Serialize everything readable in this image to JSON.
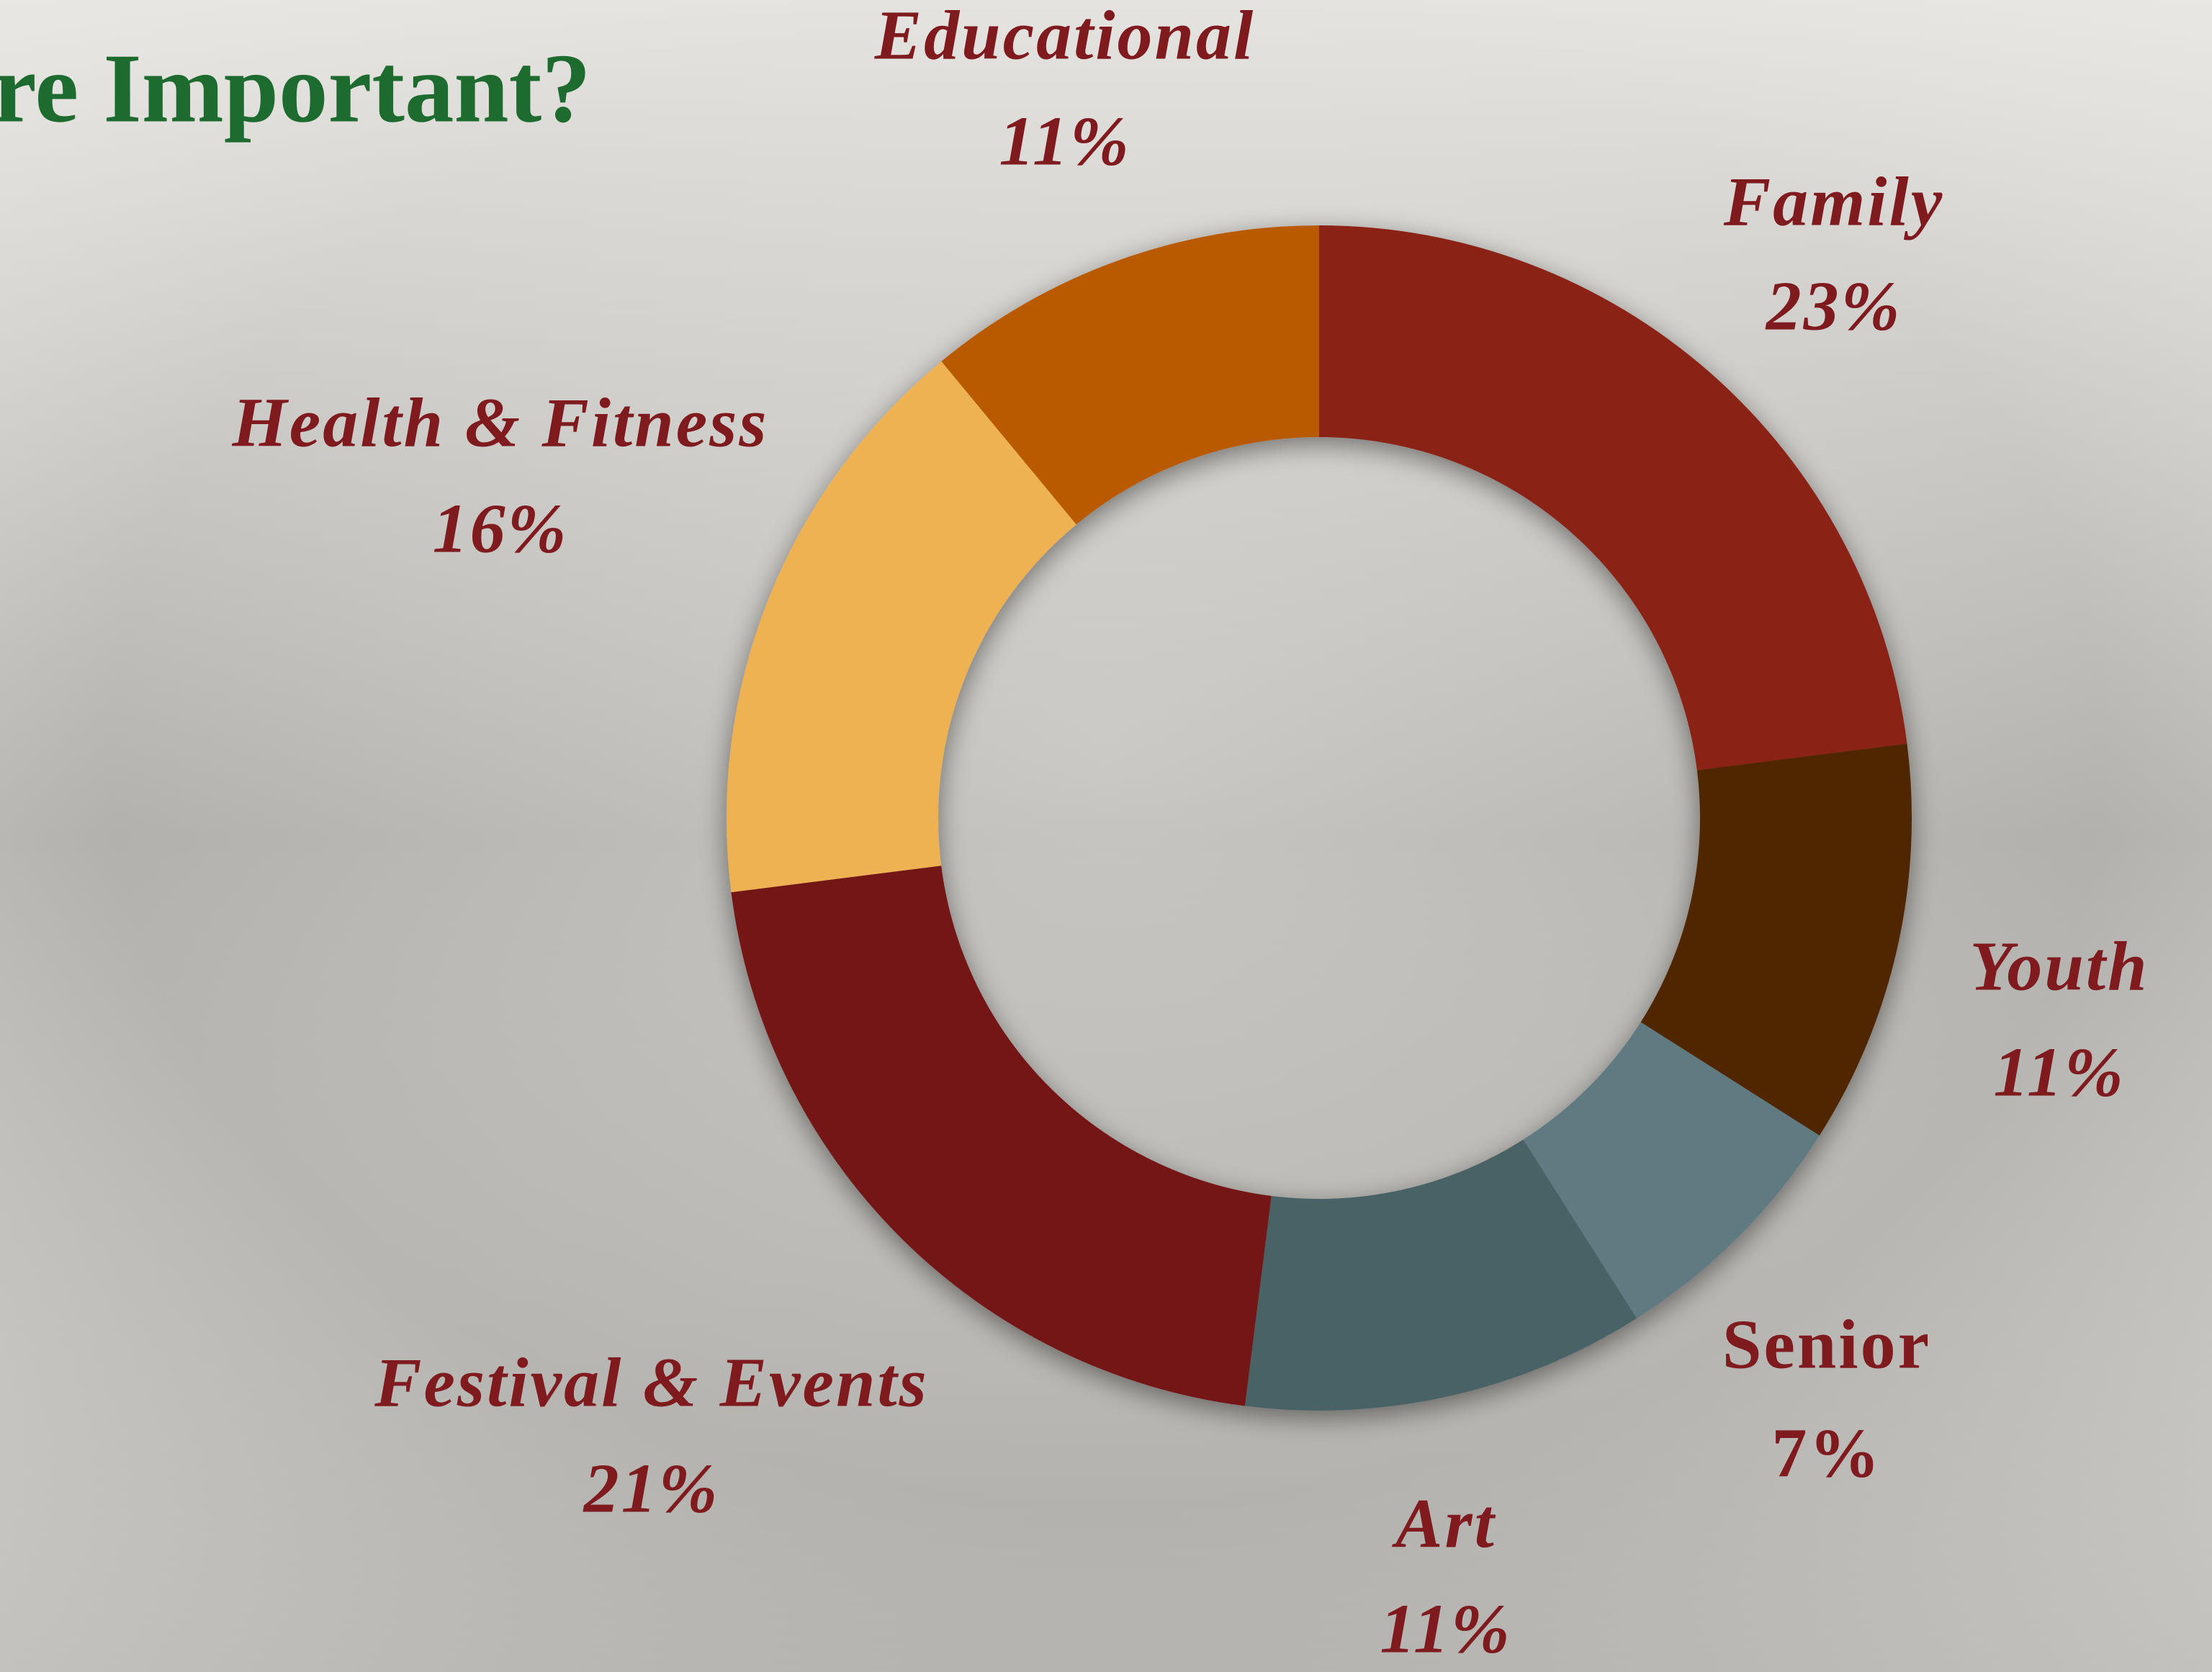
{
  "chart_data": {
    "type": "donut",
    "title": "re Important?",
    "categories": [
      "Family",
      "Youth",
      "Senior",
      "Art",
      "Festival & Events",
      "Health & Fitness",
      "Educational"
    ],
    "values": [
      23,
      11,
      7,
      11,
      21,
      16,
      11
    ],
    "value_labels": [
      "23%",
      "11%",
      "7%",
      "11%",
      "21%",
      "16%",
      "11%"
    ],
    "colors": [
      "#8a2019",
      "#4f2500",
      "#5f7a80",
      "#4a6266",
      "#751519",
      "#efb252",
      "#b95a06"
    ]
  }
}
